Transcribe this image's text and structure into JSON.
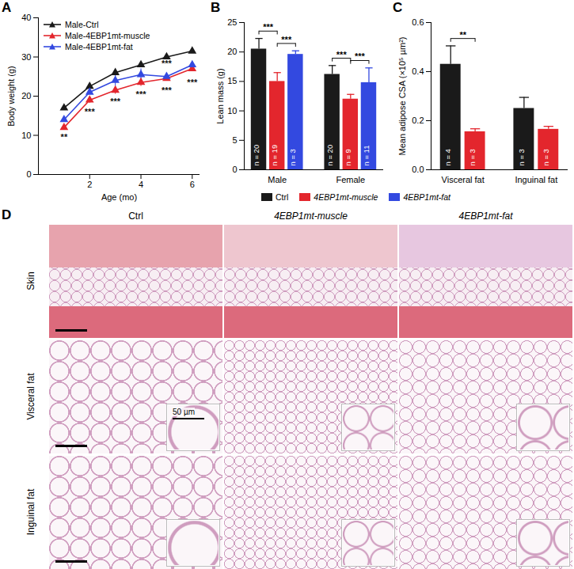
{
  "chart_data": [
    {
      "panel_label": "A",
      "type": "line",
      "x_label": "Age (mo)",
      "y_label": "Body weight (g)",
      "x": [
        1,
        2,
        3,
        4,
        5,
        6
      ],
      "xlim": [
        0,
        6.3
      ],
      "xticks": [
        2,
        4,
        6
      ],
      "ylim": [
        0,
        40
      ],
      "yticks": [
        0,
        10,
        20,
        30,
        40
      ],
      "marker": "triangle",
      "legend": "top-left",
      "series": [
        {
          "name": "Male-Ctrl",
          "color": "#1a1a1a",
          "values": [
            17,
            22.5,
            26,
            28,
            30,
            31.5
          ],
          "errors": [
            0.3,
            0.4,
            0.4,
            0.4,
            0.4,
            0.4
          ]
        },
        {
          "name": "Male-4EBP1mt-muscle",
          "color": "#e3262d",
          "values": [
            12,
            19,
            21.5,
            23.5,
            24.5,
            27
          ],
          "errors": [
            0.5,
            0.8,
            1,
            1,
            0.6,
            0.6
          ]
        },
        {
          "name": "Male-4EBP1mt-fat",
          "color": "#3349e0",
          "values": [
            14,
            21,
            24,
            25.5,
            25,
            28
          ],
          "errors": [
            0.5,
            0.6,
            1.5,
            1.5,
            0.5,
            0.6
          ]
        }
      ],
      "annotations": [
        {
          "x": 1,
          "y": 9.5,
          "text": "**"
        },
        {
          "x": 2,
          "y": 16,
          "text": "***"
        },
        {
          "x": 3,
          "y": 18.5,
          "text": "***"
        },
        {
          "x": 4,
          "y": 20.5,
          "text": "***"
        },
        {
          "x": 5,
          "y": 28.2,
          "text": "***"
        },
        {
          "x": 5,
          "y": 21.5,
          "text": "***"
        },
        {
          "x": 6,
          "y": 23.5,
          "text": "***"
        }
      ]
    },
    {
      "panel_label": "B",
      "type": "bar",
      "y_label": "Lean mass (g)",
      "categories": [
        "Male",
        "Female"
      ],
      "ylim": [
        0,
        25
      ],
      "yticks": [
        0,
        5,
        10,
        15,
        20,
        25
      ],
      "legend": "bottom",
      "series": [
        {
          "name": "Ctrl",
          "color": "#1a1a1a",
          "values": [
            20.5,
            16.2
          ],
          "errors": [
            1.8,
            1.5
          ],
          "n_labels": [
            "n = 20",
            "n = 20"
          ]
        },
        {
          "name": "4EBP1mt-muscle",
          "color": "#e3262d",
          "values": [
            15,
            12
          ],
          "errors": [
            1.5,
            0.8
          ],
          "n_labels": [
            "n = 19",
            "n = 9"
          ]
        },
        {
          "name": "4EBP1mt-fat",
          "color": "#3349e0",
          "values": [
            19.6,
            14.8
          ],
          "errors": [
            0.6,
            2.5
          ],
          "n_labels": [
            "n = 3",
            "n = 11"
          ]
        }
      ],
      "comparisons": [
        {
          "category": "Male",
          "between": [
            "Ctrl",
            "4EBP1mt-muscle"
          ],
          "text": "***"
        },
        {
          "category": "Male",
          "between": [
            "4EBP1mt-muscle",
            "4EBP1mt-fat"
          ],
          "text": "***"
        },
        {
          "category": "Female",
          "between": [
            "Ctrl",
            "4EBP1mt-muscle"
          ],
          "text": "***"
        },
        {
          "category": "Female",
          "between": [
            "4EBP1mt-muscle",
            "4EBP1mt-fat"
          ],
          "text": "***"
        }
      ]
    },
    {
      "panel_label": "C",
      "type": "bar",
      "y_label": "Mean adipose CSA (×10⁵ µm²)",
      "categories": [
        "Visceral fat",
        "Inguinal fat"
      ],
      "ylim": [
        0,
        0.6
      ],
      "yticks": [
        {
          "value": 0,
          "label": "0.0"
        },
        0.2,
        0.4,
        0.6
      ],
      "series": [
        {
          "name": "Ctrl",
          "color": "#1a1a1a",
          "values": [
            0.43,
            0.25
          ],
          "errors": [
            0.075,
            0.045
          ],
          "n_labels": [
            "n = 4",
            "n = 3"
          ]
        },
        {
          "name": "4EBP1mt-muscle",
          "color": "#e3262d",
          "values": [
            0.155,
            0.165
          ],
          "errors": [
            0.012,
            0.012
          ],
          "n_labels": [
            "n = 3",
            "n = 3"
          ]
        }
      ],
      "comparisons": [
        {
          "category": "Visceral fat",
          "between": [
            "Ctrl",
            "4EBP1mt-muscle"
          ],
          "text": "**"
        }
      ]
    }
  ],
  "images": {
    "panel_label": "D",
    "columns": [
      "Ctrl",
      "4EBP1mt-muscle",
      "4EBP1mt-fat"
    ],
    "rows": [
      "Skin",
      "Visceral fat",
      "Inguinal fat"
    ],
    "scale_bar_label": "50 µm"
  }
}
